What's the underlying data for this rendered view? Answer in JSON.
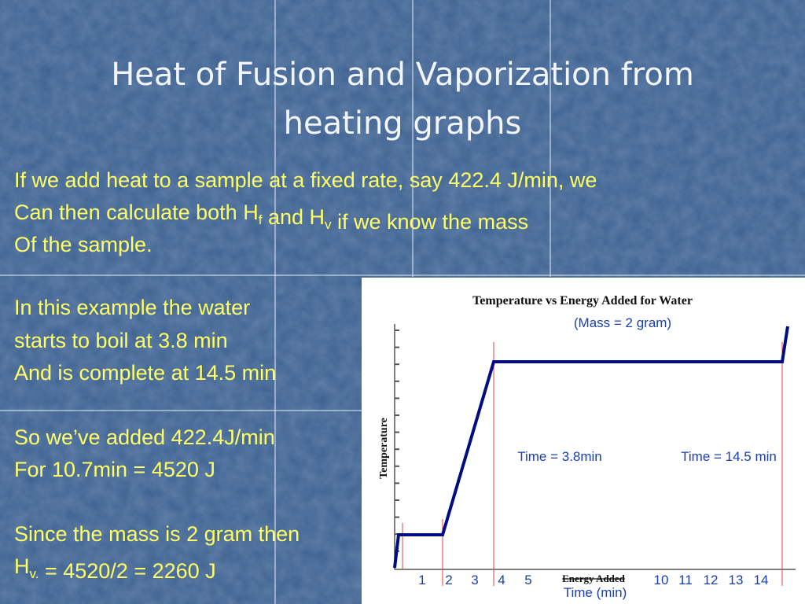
{
  "slide": {
    "title": [
      "Heat of Fusion and Vaporization from",
      "heating graphs"
    ],
    "body": [
      [
        {
          "text": "If we add heat to a sample at a fixed rate, say 422.4 J/min, we"
        }
      ],
      [
        {
          "text": "Can then calculate both H"
        },
        {
          "sub": "f"
        },
        {
          "text": " and H"
        },
        {
          "sub": "v"
        },
        {
          "text": " if we know the mass"
        }
      ],
      [
        {
          "text": "Of the sample."
        }
      ],
      [
        {
          "text": "In this example the water"
        }
      ],
      [
        {
          "text": "starts to boil at 3.8 min"
        }
      ],
      [
        {
          "text": "And is complete at 14.5 min"
        }
      ],
      [
        {
          "text": "So we’ve added 422.4J/min"
        }
      ],
      [
        {
          "text": "For 10.7min = 4520 J"
        }
      ],
      [
        {
          "text": "Since the mass is 2 gram then"
        }
      ],
      [
        {
          "text": "H"
        },
        {
          "sub": "v."
        },
        {
          "text": " = 4520/2 = 2260 J"
        }
      ]
    ]
  },
  "graph": {
    "title": "Temperature vs Energy Added for Water",
    "subtitle": "(Mass = 2 gram)",
    "y_label": "Temperature",
    "x_label": "Energy Added",
    "x_label2": "Time (min)",
    "annotations": [
      "Time = 3.8min",
      "Time = 14.5 min"
    ],
    "x_tick_labels": [
      "1",
      "2",
      "3",
      "4",
      "5",
      "10",
      "11",
      "12",
      "13",
      "14"
    ]
  }
}
